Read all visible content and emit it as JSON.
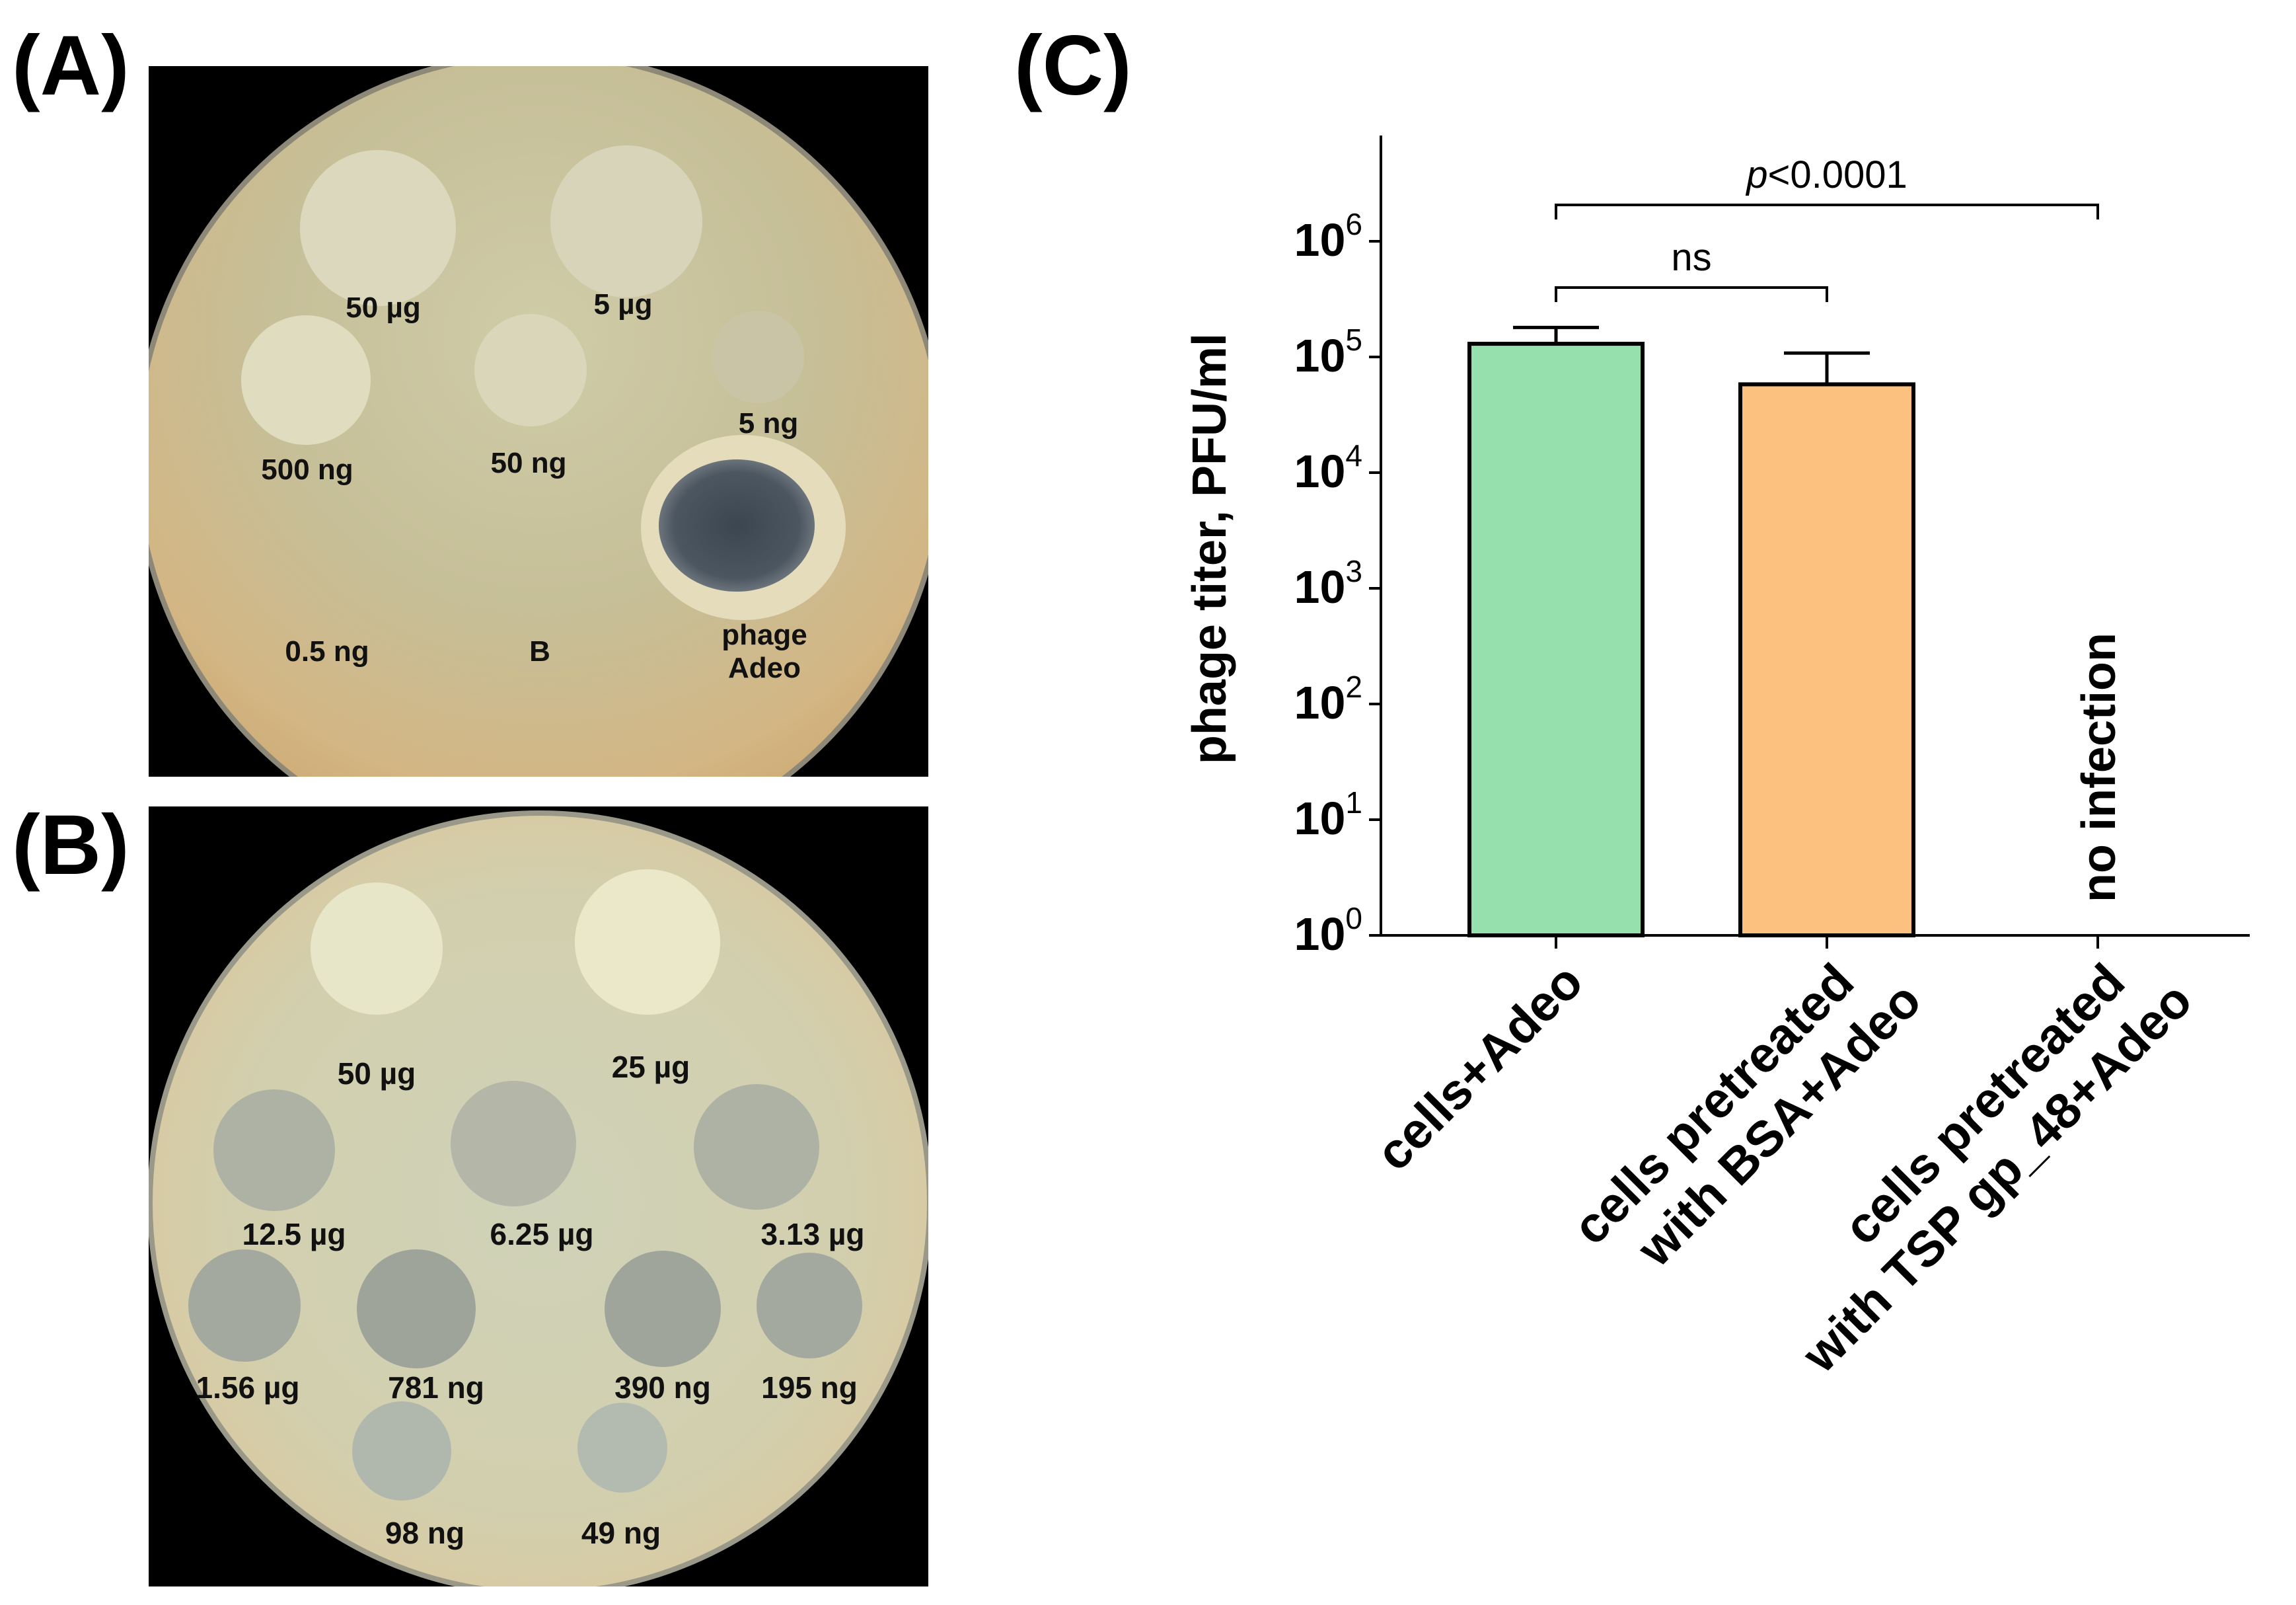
{
  "panels": {
    "a": {
      "letter": "(A)"
    },
    "b": {
      "letter": "(B)"
    },
    "c": {
      "letter": "(C)"
    }
  },
  "plate_a": {
    "spots": [
      {
        "label": "50 µg"
      },
      {
        "label": "5 µg"
      },
      {
        "label": "500 ng"
      },
      {
        "label": "50 ng"
      },
      {
        "label": "5 ng"
      },
      {
        "label": "0.5 ng"
      },
      {
        "label": "B"
      },
      {
        "label": "phage"
      },
      {
        "label": "Adeo"
      }
    ]
  },
  "plate_b": {
    "spots": [
      {
        "label": "50 µg"
      },
      {
        "label": "25 µg"
      },
      {
        "label": "12.5 µg"
      },
      {
        "label": "6.25 µg"
      },
      {
        "label": "3.13 µg"
      },
      {
        "label": "1.56 µg"
      },
      {
        "label": "781 ng"
      },
      {
        "label": "390 ng"
      },
      {
        "label": "195 ng"
      },
      {
        "label": "98 ng"
      },
      {
        "label": "49 ng"
      }
    ]
  },
  "chart_data": {
    "type": "bar",
    "ylabel": "phage titer, PFU/ml",
    "yscale": "log",
    "ylim": [
      1,
      10000000
    ],
    "yticks": [
      {
        "base": "10",
        "exp": "0"
      },
      {
        "base": "10",
        "exp": "1"
      },
      {
        "base": "10",
        "exp": "2"
      },
      {
        "base": "10",
        "exp": "3"
      },
      {
        "base": "10",
        "exp": "4"
      },
      {
        "base": "10",
        "exp": "5"
      },
      {
        "base": "10",
        "exp": "6"
      }
    ],
    "categories": [
      [
        "cells+Adeo"
      ],
      [
        "cells pretreated",
        "with BSA+Adeo"
      ],
      [
        "cells pretreated",
        "with TSP gp_48+Adeo"
      ]
    ],
    "values": [
      130000,
      58000,
      null
    ],
    "errors": [
      50000,
      50000,
      null
    ],
    "colors": [
      "#95e0ac",
      "#fcc07f",
      "#ffffff"
    ],
    "bar_annotation": "no infection",
    "significance": [
      {
        "from": 0,
        "to": 1,
        "label": "ns"
      },
      {
        "from": 0,
        "to": 2,
        "label_italic": "p",
        "label_rest": "<0.0001"
      }
    ],
    "grid": false
  }
}
